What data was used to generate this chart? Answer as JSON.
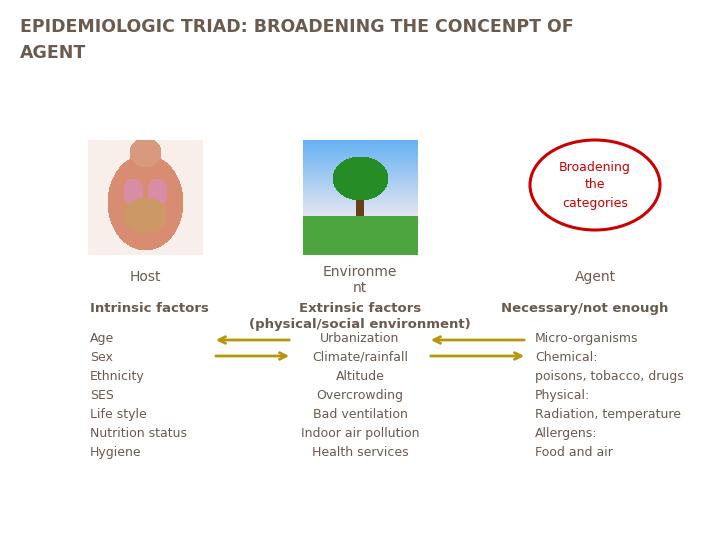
{
  "title_line1": "EPIDEMIOLOGIC TRIAD: BROADENING THE CONCENPT OF",
  "title_line2": "AGENT",
  "title_color": "#6b5a4e",
  "title_fontsize": 12.5,
  "bg_color": "#ffffff",
  "label_color": "#6b5a4e",
  "host_label": "Host",
  "env_label": "Environme\nnt",
  "agent_label": "Agent",
  "intrinsic_label": "Intrinsic factors",
  "extrinsic_label": "Extrinsic factors\n(physical/social environment)",
  "necessary_label": "Necessary/not enough",
  "broadening_text": "Broadening\nthe\ncategories",
  "host_items": "Age\nSex\nEthnicity\nSES\nLife style\nNutrition status\nHygiene",
  "env_items": "Urbanization\nClimate/rainfall\nAltitude\nOvercrowding\nBad ventilation\nIndoor air pollution\nHealth services",
  "agent_items": "Micro-organisms\nChemical:\npoisons, tobacco, drugs\nPhysical:\nRadiation, temperature\nAllergens:\nFood and air",
  "arrow_color": "#b8960c",
  "circle_color": "#cc0000",
  "items_fontsize": 9,
  "label_fontsize": 10,
  "sublabel_fontsize": 9.5
}
